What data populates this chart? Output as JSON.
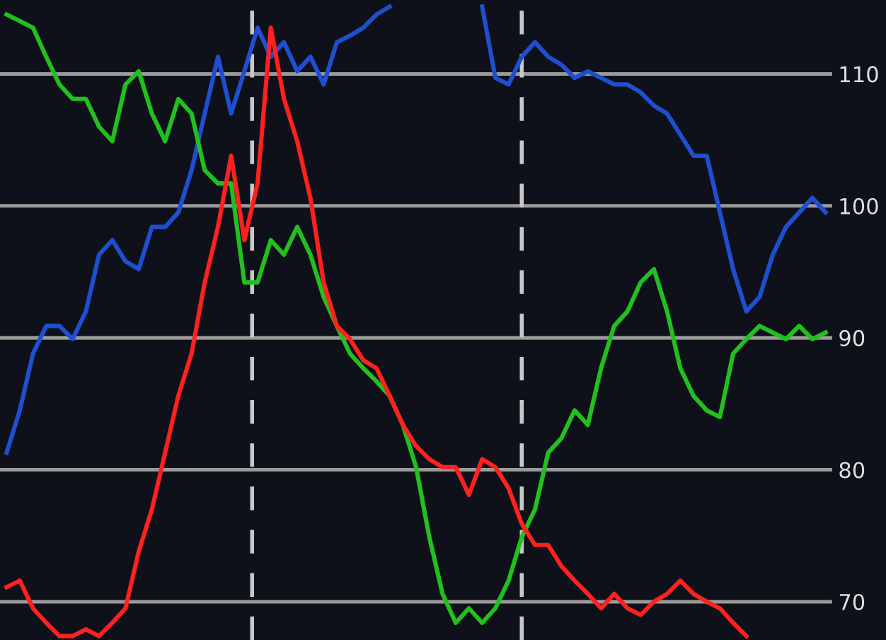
{
  "chart_data": {
    "type": "line",
    "categories": [
      null,
      null,
      null,
      null,
      null,
      null,
      null,
      null,
      null,
      null,
      null,
      null,
      null,
      null,
      null,
      null,
      null,
      null,
      null,
      null,
      null,
      null,
      null,
      null,
      null,
      null,
      null,
      null,
      null,
      null,
      null,
      null,
      null,
      null,
      null,
      null,
      null,
      null,
      null,
      null,
      null,
      null,
      null,
      null,
      null,
      null,
      null,
      null,
      null,
      null,
      null,
      null,
      null,
      null,
      null,
      null,
      null,
      null,
      null,
      null,
      null,
      null,
      null
    ],
    "series": [
      {
        "color": "#1f4fd1",
        "values": [
          81.3,
          84.5,
          88.8,
          90.9,
          90.9,
          89.9,
          92.0,
          96.3,
          97.4,
          95.8,
          95.2,
          98.4,
          98.4,
          99.5,
          102.7,
          107.0,
          111.3,
          107.0,
          110.2,
          113.5,
          111.3,
          112.4,
          110.2,
          111.3,
          109.2,
          112.4,
          112.9,
          113.5,
          114.5,
          115.1,
          null,
          null,
          null,
          null,
          null,
          null,
          115.1,
          109.7,
          109.2,
          111.3,
          112.4,
          111.3,
          110.7,
          109.7,
          110.2,
          109.7,
          109.2,
          109.2,
          108.6,
          107.6,
          107.0,
          105.4,
          103.8,
          103.8,
          99.5,
          95.2,
          92.0,
          93.1,
          96.3,
          98.4,
          99.5,
          100.6,
          99.5
        ]
      },
      {
        "color": "#22c01e",
        "values": [
          114.5,
          114.0,
          113.5,
          111.3,
          109.2,
          108.1,
          108.1,
          106.0,
          104.9,
          109.2,
          110.2,
          107.0,
          104.9,
          108.1,
          107.0,
          102.7,
          101.7,
          101.7,
          94.2,
          94.2,
          97.4,
          96.3,
          98.4,
          96.3,
          93.1,
          90.9,
          88.8,
          87.7,
          86.7,
          85.6,
          83.4,
          80.2,
          74.9,
          70.6,
          68.4,
          69.5,
          68.4,
          69.5,
          71.6,
          74.9,
          77.0,
          81.3,
          82.4,
          84.5,
          83.4,
          87.7,
          90.9,
          92.0,
          94.2,
          95.2,
          92.0,
          87.7,
          85.6,
          84.5,
          84.0,
          88.8,
          89.9,
          90.9,
          90.4,
          89.9,
          90.9,
          89.9,
          90.4
        ]
      },
      {
        "color": "#ff2020",
        "values": [
          71.1,
          71.6,
          69.5,
          68.4,
          67.4,
          67.4,
          67.9,
          67.4,
          68.4,
          69.5,
          73.8,
          77.0,
          81.3,
          85.6,
          88.8,
          94.2,
          98.4,
          103.8,
          97.4,
          101.7,
          113.5,
          108.1,
          104.9,
          100.6,
          94.2,
          90.9,
          89.9,
          88.3,
          87.7,
          85.6,
          83.4,
          81.8,
          80.8,
          80.2,
          80.2,
          78.1,
          80.8,
          80.2,
          78.6,
          75.9,
          74.3,
          74.3,
          72.7,
          71.6,
          70.6,
          69.5,
          70.6,
          69.5,
          69.0,
          70.0,
          70.6,
          71.6,
          70.6,
          70.0,
          69.5,
          68.4,
          67.4,
          null,
          null,
          null,
          null,
          null,
          null
        ]
      }
    ],
    "ylim": [
      67.1,
      115.6
    ],
    "yticks": [
      70,
      80,
      90,
      100,
      110
    ],
    "grid": "y",
    "tick_labels": "y"
  }
}
